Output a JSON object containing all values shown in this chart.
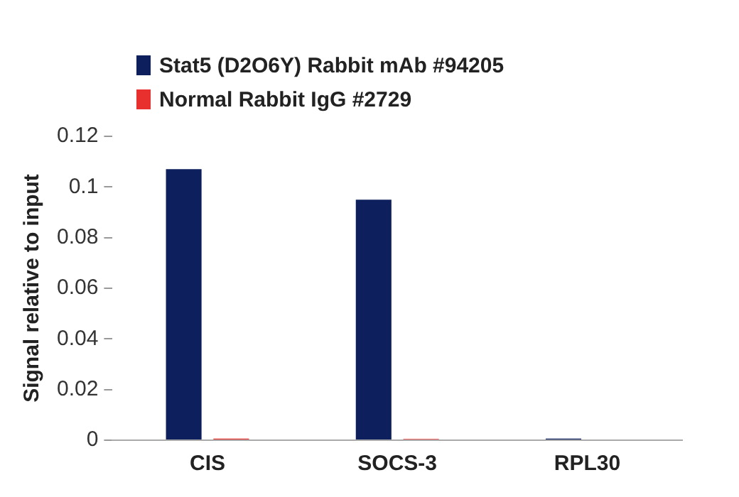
{
  "chart_data": {
    "type": "bar",
    "ylabel": "Signal relative to input",
    "categories": [
      "CIS",
      "SOCS-3",
      "RPL30"
    ],
    "series": [
      {
        "name": "Stat5 (D2O6Y) Rabbit mAb #94205",
        "color": "#0d1f5c",
        "values": [
          0.107,
          0.095,
          0.0006
        ]
      },
      {
        "name": "Normal Rabbit IgG #2729",
        "color": "#e8312f",
        "values": [
          0.0006,
          0.0005,
          0
        ]
      }
    ],
    "ylim": [
      0,
      0.12
    ],
    "yticks": [
      0,
      0.02,
      0.04,
      0.06,
      0.08,
      0.1,
      0.12
    ],
    "grid": false,
    "legend": "top left"
  }
}
